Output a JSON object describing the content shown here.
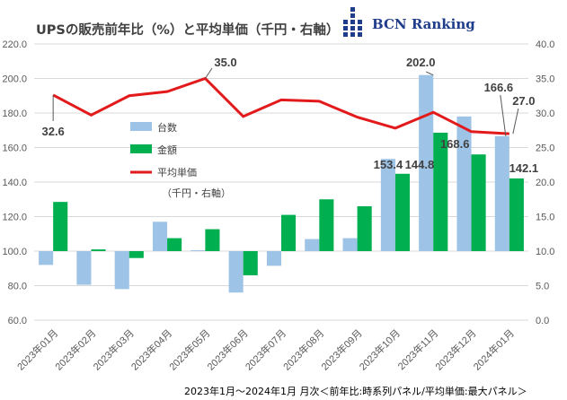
{
  "title": "UPSの販売前年比（%）と平均単価（千円・右軸）",
  "logo": {
    "text": "BCN Ranking"
  },
  "footer": "2023年1月～2024年1月 月次＜前年比:時系列パネル/平均単価:最大パネル＞",
  "colors": {
    "units": "#9dc3e6",
    "amount": "#00b050",
    "price": "#e31a1c",
    "grid": "#d9d9d9",
    "logo": "#1f3d8a"
  },
  "chart_data": {
    "type": "bar",
    "title": "UPSの販売前年比（%）と平均単価（千円・右軸）",
    "categories": [
      "2023年01月",
      "2023年02月",
      "2023年03月",
      "2023年04月",
      "2023年05月",
      "2023年06月",
      "2023年07月",
      "2023年08月",
      "2023年09月",
      "2023年10月",
      "2023年11月",
      "2023年12月",
      "2024年01月"
    ],
    "ylim": [
      60,
      220
    ],
    "yticks": [
      "60.0",
      "80.0",
      "100.0",
      "120.0",
      "140.0",
      "160.0",
      "180.0",
      "200.0",
      "220.0"
    ],
    "y2lim": [
      0,
      40
    ],
    "y2ticks": [
      "0.0",
      "5.0",
      "10.0",
      "15.0",
      "20.0",
      "25.0",
      "30.0",
      "35.0",
      "40.0"
    ],
    "baseline": 100,
    "series": [
      {
        "name": "台数",
        "type": "bar",
        "axis": "left",
        "values": [
          92,
          80.5,
          78,
          117,
          100.5,
          76,
          91.5,
          107,
          107.5,
          153.4,
          202.0,
          178,
          166.6
        ]
      },
      {
        "name": "金額",
        "type": "bar",
        "axis": "left",
        "values": [
          128.5,
          101,
          96,
          107.5,
          112.7,
          86,
          121,
          130,
          126,
          144.8,
          168.6,
          156,
          142.1
        ]
      },
      {
        "name": "平均単価",
        "name2": "（千円・右軸）",
        "type": "line",
        "axis": "right",
        "values": [
          32.6,
          29.7,
          32.5,
          33.1,
          35.0,
          29.5,
          31.9,
          31.7,
          29.4,
          27.8,
          30.1,
          27.3,
          27.0
        ]
      }
    ],
    "data_labels": [
      {
        "series": 0,
        "index": 9,
        "text": "153.4"
      },
      {
        "series": 1,
        "index": 9,
        "text": "144.8"
      },
      {
        "series": 0,
        "index": 10,
        "text": "202.0"
      },
      {
        "series": 1,
        "index": 10,
        "text": "168.6"
      },
      {
        "series": 0,
        "index": 12,
        "text": "166.6"
      },
      {
        "series": 1,
        "index": 12,
        "text": "142.1"
      },
      {
        "series": 2,
        "index": 0,
        "text": "32.6"
      },
      {
        "series": 2,
        "index": 4,
        "text": "35.0"
      },
      {
        "series": 2,
        "index": 12,
        "text": "27.0"
      }
    ],
    "legend": "center-left inside plot",
    "grid": true
  }
}
